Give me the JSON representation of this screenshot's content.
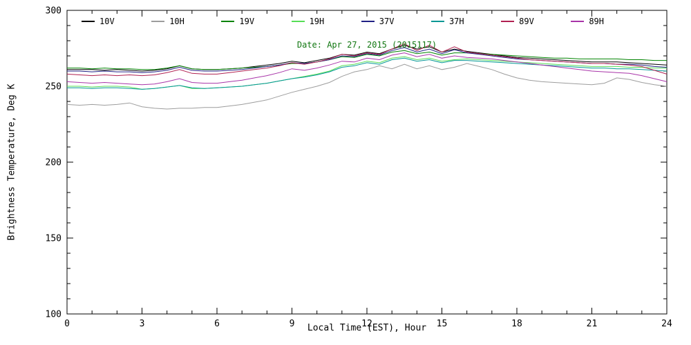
{
  "chart_data": {
    "type": "line",
    "title": "Date: Apr 27, 2015 (2015117)",
    "title_color": "#117711",
    "xlabel": "Local Time (EST), Hour",
    "ylabel": "Brightness Temperature, Deg K",
    "xlim": [
      0,
      24
    ],
    "ylim": [
      100,
      300
    ],
    "x_major_ticks": [
      0,
      3,
      6,
      9,
      12,
      15,
      18,
      21,
      24
    ],
    "y_major_ticks": [
      100,
      150,
      200,
      250,
      300
    ],
    "x_minor_step": 1,
    "y_minor_step": 10,
    "grid": false,
    "legend_position": "top-inside",
    "x_start": 0,
    "x_step": 0.5,
    "series": [
      {
        "name": "10V",
        "color": "#000000",
        "values": [
          261,
          261,
          261,
          260.5,
          261,
          260.5,
          260,
          260.5,
          261.5,
          263.5,
          261.5,
          261,
          261,
          261.5,
          262,
          263,
          264,
          265,
          266.5,
          265.5,
          267,
          268.5,
          271,
          270.5,
          272.5,
          271.5,
          274.5,
          277,
          274.5,
          276,
          272.5,
          274.5,
          273,
          272,
          271,
          270,
          269,
          268.5,
          268,
          267.5,
          267,
          266.5,
          266,
          266,
          266,
          265.5,
          265,
          264.5,
          264
        ]
      },
      {
        "name": "10H",
        "color": "#9c9c9c",
        "values": [
          238,
          237.5,
          238,
          237.5,
          238,
          239,
          236.5,
          235.5,
          235,
          235.5,
          235.5,
          236,
          236,
          237,
          238,
          239.5,
          241,
          243.5,
          246,
          248,
          250,
          252.5,
          256.5,
          259.5,
          261,
          263.5,
          261.5,
          264.5,
          261.5,
          263.5,
          261,
          262.5,
          265,
          263,
          261,
          258,
          255.5,
          254,
          253,
          252.5,
          252,
          251.5,
          251,
          252,
          255.5,
          254.5,
          252.5,
          251,
          250
        ]
      },
      {
        "name": "19V",
        "color": "#008200",
        "values": [
          262,
          262,
          261.5,
          262,
          261.5,
          261.5,
          261,
          261,
          262,
          263.5,
          261.5,
          261,
          261,
          261.5,
          262,
          262.5,
          263,
          264,
          265,
          265,
          266,
          267.5,
          269.5,
          269,
          271,
          270,
          272.5,
          273.5,
          271.5,
          272.5,
          270.5,
          272,
          272,
          271.5,
          271,
          270.5,
          270,
          269.5,
          269,
          268.5,
          268.5,
          268,
          268,
          268,
          268,
          267.5,
          267.5,
          267,
          267
        ]
      },
      {
        "name": "19H",
        "color": "#55dd55",
        "values": [
          250,
          250,
          249.5,
          250,
          250,
          249.5,
          248,
          248.5,
          249.5,
          250.5,
          248.5,
          248.5,
          249,
          249.5,
          250,
          251,
          252,
          253.5,
          255,
          256.5,
          258,
          260,
          263.5,
          264.5,
          266.5,
          265.5,
          268.5,
          269.5,
          267.5,
          268.5,
          266.5,
          267.5,
          268,
          267.5,
          267,
          266.5,
          266,
          265.5,
          265,
          264.5,
          264,
          263.5,
          263,
          263,
          263,
          262.5,
          262.5,
          262,
          262
        ]
      },
      {
        "name": "37V",
        "color": "#202084",
        "values": [
          260,
          260,
          259.5,
          260,
          259.5,
          259.5,
          259,
          259.5,
          260.5,
          262.5,
          260.5,
          260,
          260,
          260.5,
          261,
          262,
          263,
          264,
          265.5,
          265,
          266,
          267.5,
          270,
          269.5,
          271.5,
          270.5,
          273.5,
          275.5,
          272.5,
          274.5,
          271.5,
          274,
          272,
          271,
          270,
          269,
          268,
          267.5,
          267,
          266.5,
          266,
          265.5,
          265,
          265,
          264.5,
          264.5,
          264,
          263,
          262.5
        ]
      },
      {
        "name": "37H",
        "color": "#009694",
        "values": [
          249,
          249,
          248.5,
          249,
          249,
          248.5,
          248,
          248.5,
          249.5,
          250.5,
          249,
          248.5,
          249,
          249.5,
          250,
          251,
          252,
          253.5,
          255,
          256,
          257.5,
          259.5,
          262.5,
          263.5,
          265.5,
          264.5,
          267.5,
          268.5,
          266.5,
          267.5,
          265.5,
          267,
          267,
          266.5,
          266,
          265.5,
          265,
          264.5,
          264,
          263.5,
          263,
          262.5,
          262,
          262,
          261.5,
          261.5,
          261,
          260.5,
          260
        ]
      },
      {
        "name": "89V",
        "color": "#b02050",
        "values": [
          258,
          257.5,
          257,
          257.5,
          257,
          257.5,
          257,
          257.5,
          259,
          261,
          258.5,
          258,
          258,
          259,
          260,
          261,
          262,
          263.5,
          265.5,
          264.5,
          266,
          268,
          271,
          270,
          272,
          271,
          274.5,
          278,
          273.5,
          277,
          272.5,
          276,
          272.5,
          271.5,
          270.5,
          269.5,
          268.5,
          267.5,
          267,
          266.5,
          266,
          265.5,
          265,
          265,
          264.5,
          264,
          263,
          260.5,
          258
        ]
      },
      {
        "name": "89H",
        "color": "#a833a8",
        "values": [
          253,
          252.5,
          252,
          252.5,
          252,
          251.5,
          251,
          251.5,
          253,
          255,
          252.5,
          252,
          252,
          253,
          254,
          255.5,
          257,
          259,
          261.5,
          260.5,
          262,
          264,
          266.5,
          266,
          268.5,
          267.5,
          270.5,
          272,
          269.5,
          271,
          268.5,
          270,
          269,
          268.5,
          268,
          267,
          266,
          265,
          264,
          263,
          262,
          261,
          260,
          259.5,
          259,
          258.5,
          257,
          255,
          253
        ]
      }
    ]
  }
}
